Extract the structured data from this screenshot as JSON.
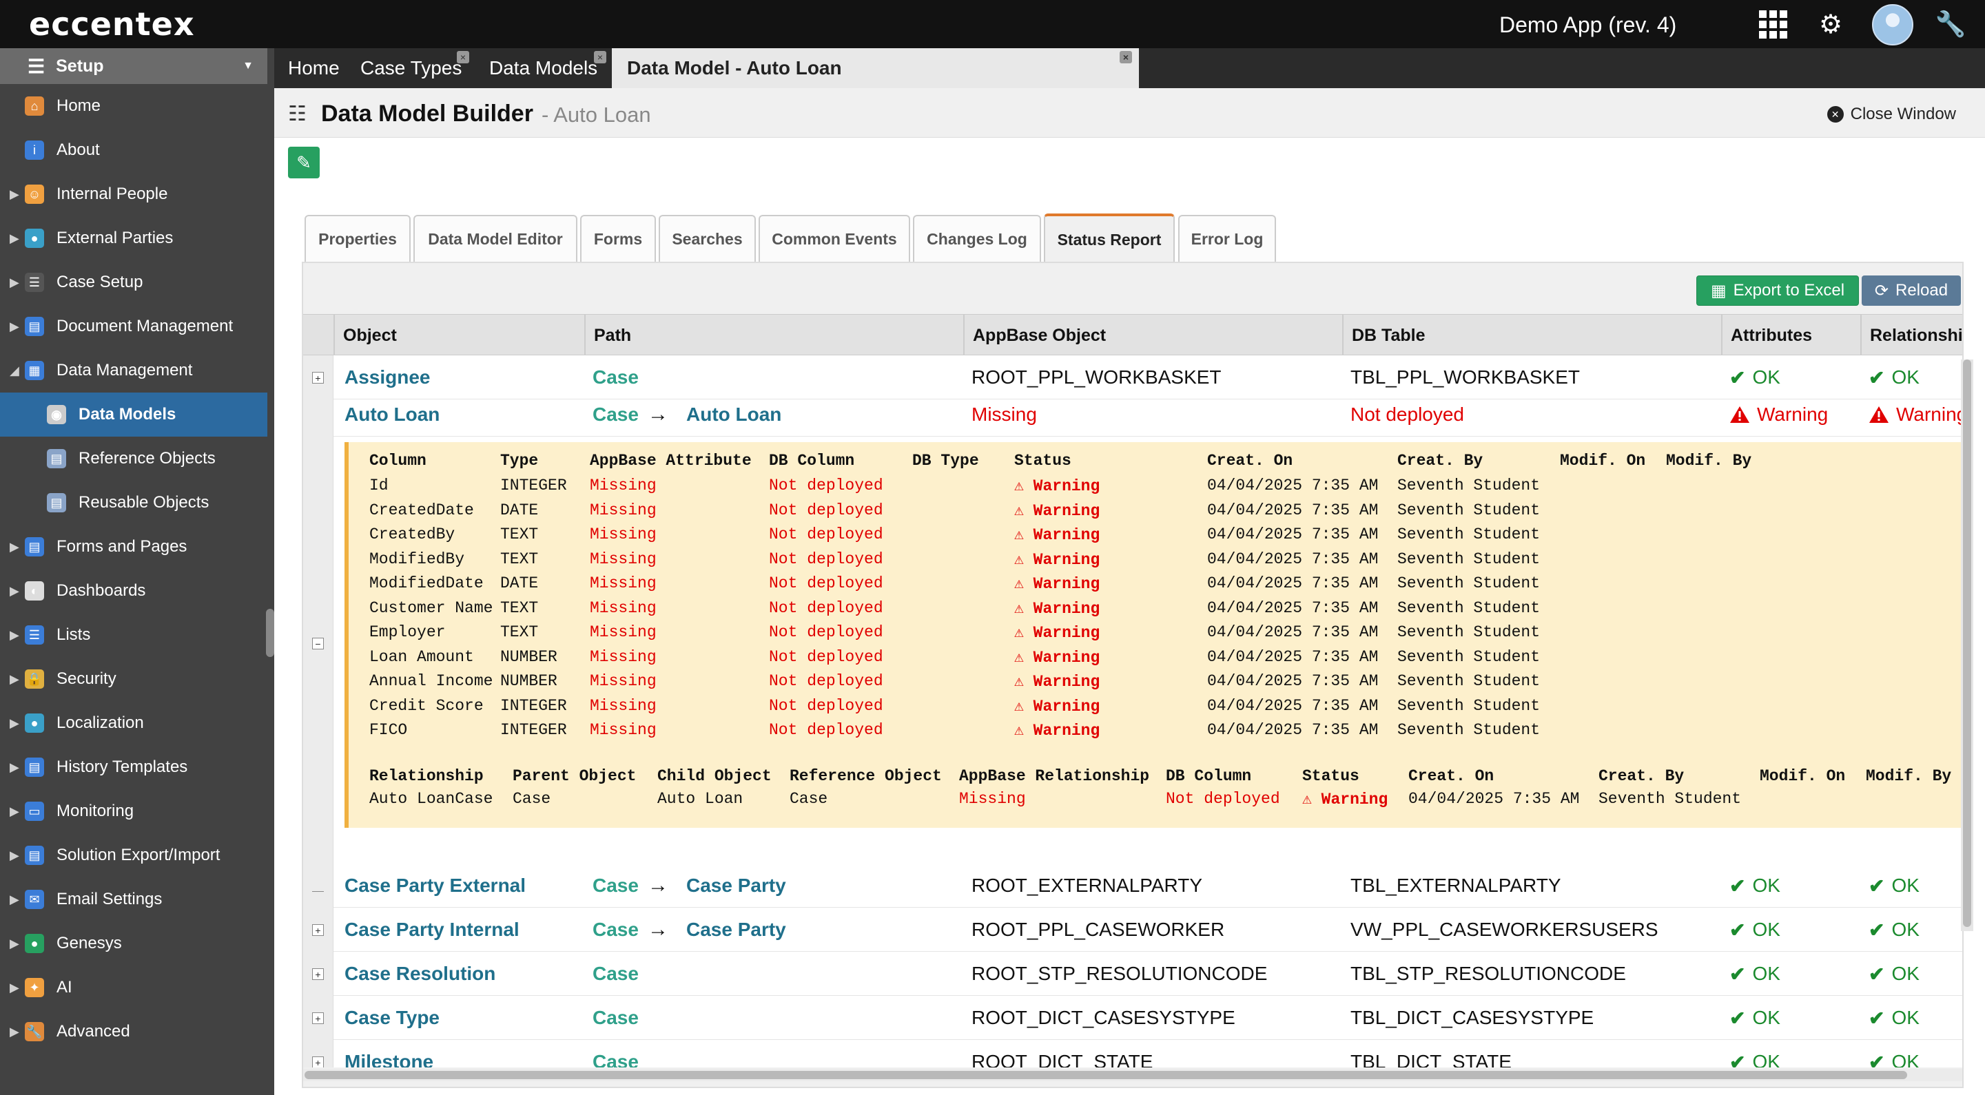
{
  "header": {
    "logo": "eccentex",
    "app_title": "Demo App (rev. 4)",
    "icons": [
      "apps-grid-icon",
      "gear-icon",
      "avatar",
      "wrench-icon"
    ]
  },
  "sidebar": {
    "setup_label": "Setup",
    "items": [
      {
        "label": "Home",
        "icon": "home-icon"
      },
      {
        "label": "About",
        "icon": "info-icon"
      },
      {
        "label": "Internal People",
        "icon": "people-icon"
      },
      {
        "label": "External Parties",
        "icon": "globe-icon"
      },
      {
        "label": "Case Setup",
        "icon": "case-icon"
      },
      {
        "label": "Document Management",
        "icon": "folder-icon"
      },
      {
        "label": "Data Management",
        "icon": "table-icon"
      },
      {
        "label": "Data Models",
        "icon": "database-icon"
      },
      {
        "label": "Reference Objects",
        "icon": "reference-icon"
      },
      {
        "label": "Reusable Objects",
        "icon": "reusable-icon"
      },
      {
        "label": "Forms and Pages",
        "icon": "form-icon"
      },
      {
        "label": "Dashboards",
        "icon": "dashboard-icon"
      },
      {
        "label": "Lists",
        "icon": "list-icon"
      },
      {
        "label": "Security",
        "icon": "lock-icon"
      },
      {
        "label": "Localization",
        "icon": "globe-icon"
      },
      {
        "label": "History Templates",
        "icon": "history-icon"
      },
      {
        "label": "Monitoring",
        "icon": "monitor-icon"
      },
      {
        "label": "Solution Export/Import",
        "icon": "export-icon"
      },
      {
        "label": "Email Settings",
        "icon": "email-icon"
      },
      {
        "label": "Genesys",
        "icon": "genesys-icon"
      },
      {
        "label": "AI",
        "icon": "ai-icon"
      },
      {
        "label": "Advanced",
        "icon": "wrench-icon"
      }
    ]
  },
  "doc_tabs": [
    {
      "label": "Home"
    },
    {
      "label": "Case Types"
    },
    {
      "label": "Data Models"
    },
    {
      "label": "Data Model - Auto Loan"
    }
  ],
  "title": {
    "main": "Data Model Builder",
    "sub": "- Auto Loan",
    "close_label": "Close Window"
  },
  "content_tabs": [
    "Properties",
    "Data Model Editor",
    "Forms",
    "Searches",
    "Common Events",
    "Changes Log",
    "Status Report",
    "Error Log"
  ],
  "toolbar": {
    "export_label": "Export to Excel",
    "reload_label": "Reload"
  },
  "grid": {
    "columns": [
      "Object",
      "Path",
      "AppBase Object",
      "DB Table",
      "Attributes",
      "Relationships"
    ],
    "rows": [
      {
        "object": "Assignee",
        "path1": "Case",
        "path2": "",
        "appbase": "ROOT_PPL_WORKBASKET",
        "dbtable": "TBL_PPL_WORKBASKET",
        "attributes": "OK",
        "relationships": "OK"
      },
      {
        "object": "Auto Loan",
        "path1": "Case",
        "path2": "Auto Loan",
        "appbase": "Missing",
        "dbtable": "Not deployed",
        "attributes": "Warning",
        "relationships": "Warning"
      },
      {
        "object": "Case Party External",
        "path1": "Case",
        "path2": "Case Party",
        "appbase": "ROOT_EXTERNALPARTY",
        "dbtable": "TBL_EXTERNALPARTY",
        "attributes": "OK",
        "relationships": "OK"
      },
      {
        "object": "Case Party Internal",
        "path1": "Case",
        "path2": "Case Party",
        "appbase": "ROOT_PPL_CASEWORKER",
        "dbtable": "VW_PPL_CASEWORKERSUSERS",
        "attributes": "OK",
        "relationships": "OK"
      },
      {
        "object": "Case Resolution",
        "path1": "Case",
        "path2": "",
        "appbase": "ROOT_STP_RESOLUTIONCODE",
        "dbtable": "TBL_STP_RESOLUTIONCODE",
        "attributes": "OK",
        "relationships": "OK"
      },
      {
        "object": "Case Type",
        "path1": "Case",
        "path2": "",
        "appbase": "ROOT_DICT_CASESYSTYPE",
        "dbtable": "TBL_DICT_CASESYSTYPE",
        "attributes": "OK",
        "relationships": "OK"
      },
      {
        "object": "Milestone",
        "path1": "Case",
        "path2": "",
        "appbase": "ROOT_DICT_STATE",
        "dbtable": "TBL_DICT_STATE",
        "attributes": "OK",
        "relationships": "OK"
      }
    ]
  },
  "detail": {
    "columns_header": [
      "Column",
      "Type",
      "AppBase Attribute",
      "DB Column",
      "DB Type",
      "Status",
      "Creat. On",
      "Creat. By",
      "Modif. On",
      "Modif. By"
    ],
    "columns_rows": [
      {
        "column": "Id",
        "type": "INTEGER",
        "appbase": "Missing",
        "dbcol": "Not deployed",
        "status": "Warning",
        "creat_on": "04/04/2025 7:35 AM",
        "creat_by": "Seventh Student"
      },
      {
        "column": "CreatedDate",
        "type": "DATE",
        "appbase": "Missing",
        "dbcol": "Not deployed",
        "status": "Warning",
        "creat_on": "04/04/2025 7:35 AM",
        "creat_by": "Seventh Student"
      },
      {
        "column": "CreatedBy",
        "type": "TEXT",
        "appbase": "Missing",
        "dbcol": "Not deployed",
        "status": "Warning",
        "creat_on": "04/04/2025 7:35 AM",
        "creat_by": "Seventh Student"
      },
      {
        "column": "ModifiedBy",
        "type": "TEXT",
        "appbase": "Missing",
        "dbcol": "Not deployed",
        "status": "Warning",
        "creat_on": "04/04/2025 7:35 AM",
        "creat_by": "Seventh Student"
      },
      {
        "column": "ModifiedDate",
        "type": "DATE",
        "appbase": "Missing",
        "dbcol": "Not deployed",
        "status": "Warning",
        "creat_on": "04/04/2025 7:35 AM",
        "creat_by": "Seventh Student"
      },
      {
        "column": "Customer Name",
        "type": "TEXT",
        "appbase": "Missing",
        "dbcol": "Not deployed",
        "status": "Warning",
        "creat_on": "04/04/2025 7:35 AM",
        "creat_by": "Seventh Student"
      },
      {
        "column": "Employer",
        "type": "TEXT",
        "appbase": "Missing",
        "dbcol": "Not deployed",
        "status": "Warning",
        "creat_on": "04/04/2025 7:35 AM",
        "creat_by": "Seventh Student"
      },
      {
        "column": "Loan Amount",
        "type": "NUMBER",
        "appbase": "Missing",
        "dbcol": "Not deployed",
        "status": "Warning",
        "creat_on": "04/04/2025 7:35 AM",
        "creat_by": "Seventh Student"
      },
      {
        "column": "Annual Income",
        "type": "NUMBER",
        "appbase": "Missing",
        "dbcol": "Not deployed",
        "status": "Warning",
        "creat_on": "04/04/2025 7:35 AM",
        "creat_by": "Seventh Student"
      },
      {
        "column": "Credit Score",
        "type": "INTEGER",
        "appbase": "Missing",
        "dbcol": "Not deployed",
        "status": "Warning",
        "creat_on": "04/04/2025 7:35 AM",
        "creat_by": "Seventh Student"
      },
      {
        "column": "FICO",
        "type": "INTEGER",
        "appbase": "Missing",
        "dbcol": "Not deployed",
        "status": "Warning",
        "creat_on": "04/04/2025 7:35 AM",
        "creat_by": "Seventh Student"
      }
    ],
    "rel_header": [
      "Relationship",
      "Parent Object",
      "Child Object",
      "Reference Object",
      "AppBase Relationship",
      "DB Column",
      "Status",
      "Creat. On",
      "Creat. By",
      "Modif. On",
      "Modif. By"
    ],
    "rel_rows": [
      {
        "relationship": "Auto LoanCase",
        "parent": "Case",
        "child": "Auto Loan",
        "reference": "Case",
        "appbase": "Missing",
        "dbcol": "Not deployed",
        "status": "Warning",
        "creat_on": "04/04/2025 7:35 AM",
        "creat_by": "Seventh Student"
      }
    ]
  },
  "colors": {
    "sidebar_active": "#2c6aa0",
    "ok_green": "#1b8a2e",
    "error_red": "#e00000",
    "object_blue": "#1f6f8b",
    "path_teal": "#2fa08a",
    "detail_bg": "#fdf0cc",
    "tab_accent": "#e07a2c"
  }
}
